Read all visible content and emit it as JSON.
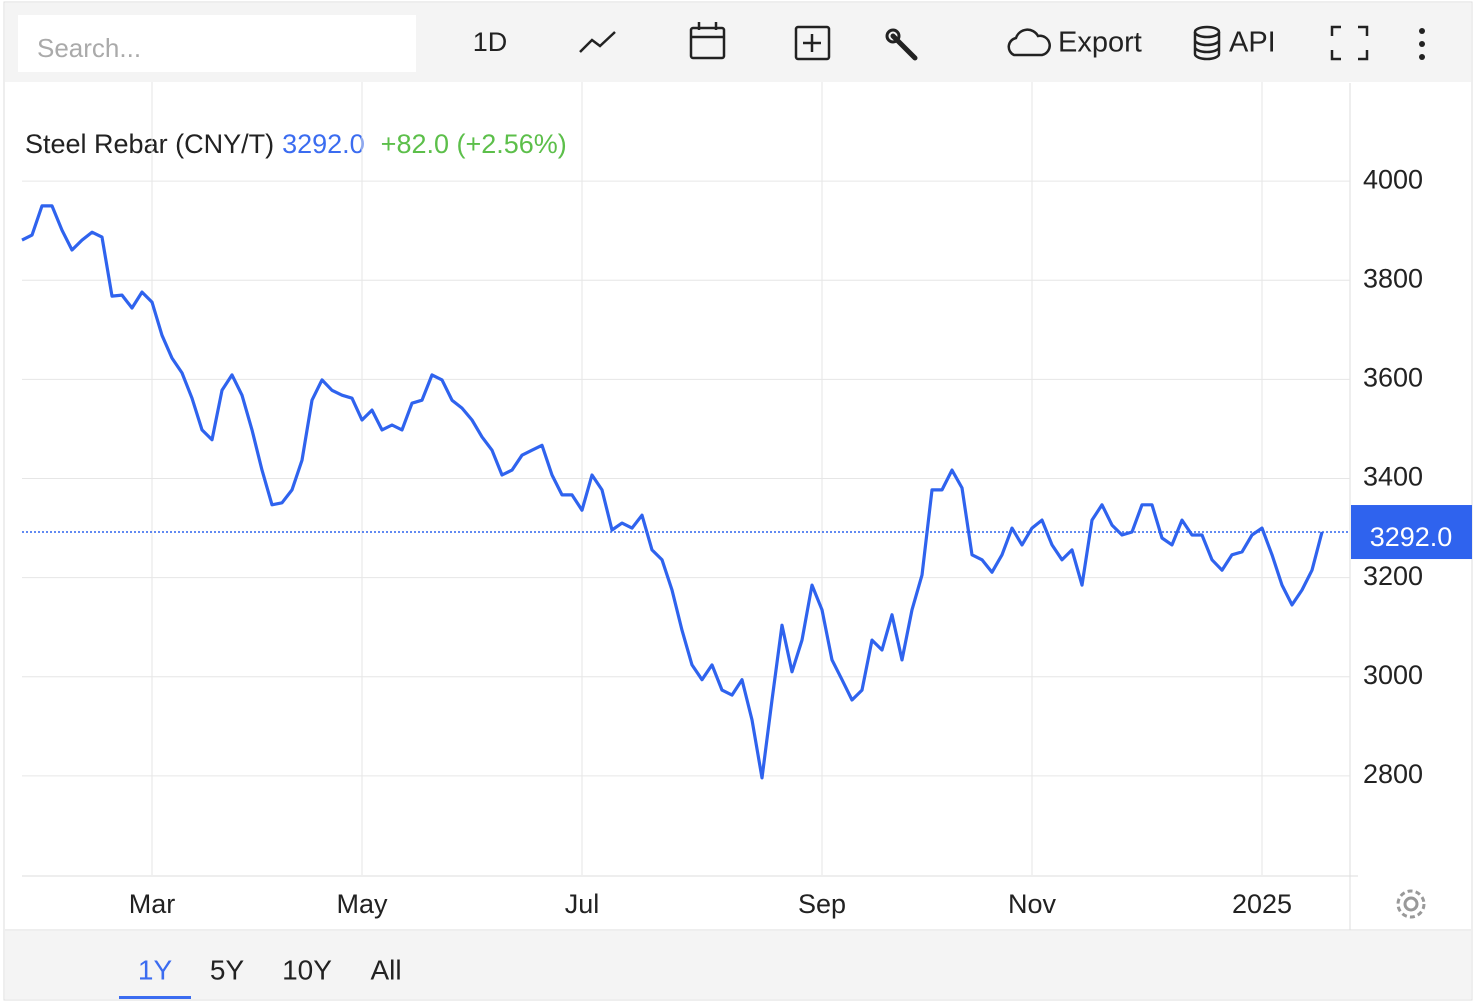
{
  "toolbar": {
    "search_placeholder": "Search...",
    "interval": "1D",
    "export": "Export",
    "api": "API"
  },
  "ranges": [
    "1Y",
    "5Y",
    "10Y",
    "All"
  ],
  "chart_data": {
    "type": "line",
    "title": "Steel Rebar (CNY/T)",
    "price_label": "3292.0",
    "change_label": "+82.0 (+2.56%)",
    "color": "#2f63ee",
    "categories": [
      null,
      null,
      null,
      null,
      null,
      null,
      null,
      null,
      null,
      null,
      null,
      null,
      null,
      "Mar",
      null,
      null,
      null,
      null,
      null,
      null,
      null,
      null,
      null,
      null,
      null,
      null,
      null,
      null,
      null,
      null,
      null,
      null,
      null,
      null,
      "May",
      null,
      null,
      null,
      null,
      null,
      null,
      null,
      null,
      null,
      null,
      null,
      null,
      null,
      null,
      null,
      null,
      null,
      null,
      null,
      null,
      null,
      "Jul",
      null,
      null,
      null,
      null,
      null,
      null,
      null,
      null,
      null,
      null,
      null,
      null,
      null,
      null,
      null,
      null,
      null,
      null,
      null,
      null,
      null,
      null,
      null,
      "Sep",
      null,
      null,
      null,
      null,
      null,
      null,
      null,
      null,
      null,
      null,
      null,
      null,
      null,
      null,
      null,
      null,
      null,
      null,
      null,
      null,
      "Nov",
      null,
      null,
      null,
      null,
      null,
      null,
      null,
      null,
      null,
      null,
      null,
      null,
      null,
      null,
      null,
      null,
      null,
      null,
      null,
      null,
      null,
      null,
      "2025",
      null,
      null,
      null,
      null,
      null,
      null
    ],
    "values": [
      3881,
      3891,
      3950,
      3950,
      3901,
      3861,
      3881,
      3897,
      3887,
      3768,
      3770,
      3744,
      3776,
      3756,
      3689,
      3643,
      3613,
      3562,
      3498,
      3478,
      3578,
      3609,
      3568,
      3498,
      3417,
      3347,
      3351,
      3377,
      3437,
      3558,
      3599,
      3578,
      3568,
      3562,
      3518,
      3538,
      3498,
      3508,
      3498,
      3552,
      3558,
      3609,
      3599,
      3558,
      3542,
      3518,
      3484,
      3457,
      3407,
      3417,
      3447,
      3457,
      3467,
      3407,
      3367,
      3367,
      3336,
      3407,
      3377,
      3296,
      3310,
      3300,
      3326,
      3256,
      3236,
      3175,
      3094,
      3024,
      2994,
      3024,
      2973,
      2963,
      2994,
      2913,
      2796,
      2953,
      3104,
      3010,
      3074,
      3185,
      3135,
      3034,
      2994,
      2953,
      2973,
      3074,
      3054,
      3125,
      3034,
      3135,
      3205,
      3377,
      3377,
      3417,
      3381,
      3246,
      3236,
      3211,
      3246,
      3300,
      3266,
      3300,
      3316,
      3266,
      3236,
      3256,
      3185,
      3316,
      3347,
      3306,
      3286,
      3292,
      3347,
      3347,
      3280,
      3266,
      3316,
      3286,
      3286,
      3236,
      3215,
      3246,
      3252,
      3286,
      3300,
      3246,
      3185,
      3145,
      3175,
      3215,
      3292
    ],
    "ylim": [
      2600,
      4200
    ],
    "yticks": [
      2800,
      3000,
      3200,
      3400,
      3600,
      3800,
      4000
    ],
    "grid": true
  }
}
